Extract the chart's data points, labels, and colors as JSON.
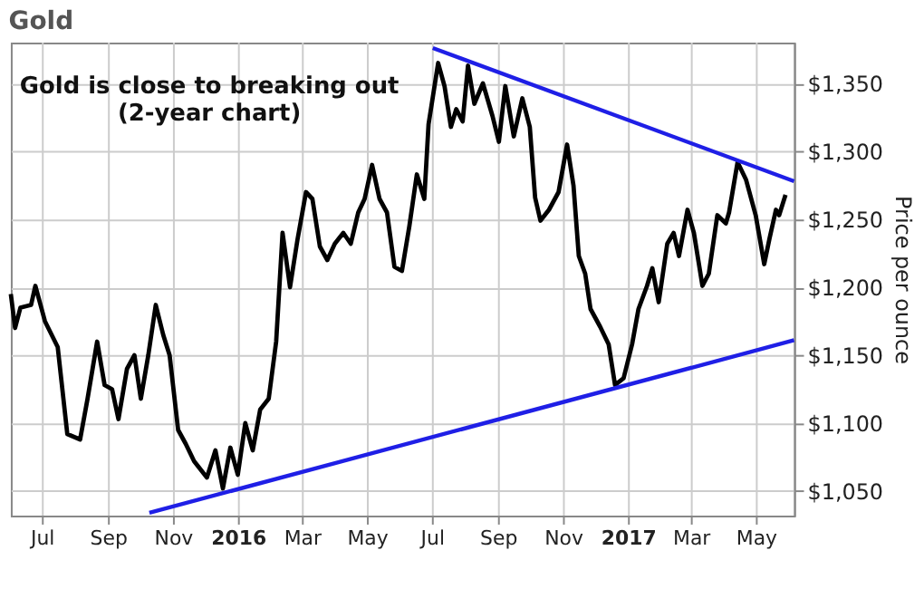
{
  "chart_data": {
    "type": "line",
    "title": "Gold",
    "ylabel": "Price per ounce",
    "annotations": [
      "Gold is close to breaking out\n(2-year chart)"
    ],
    "xlim": [
      "2015-06-01",
      "2017-06-05"
    ],
    "ylim": [
      1032,
      1380
    ],
    "xticks": [
      {
        "value": "2015-07-01",
        "label": "Jul"
      },
      {
        "value": "2015-09-01",
        "label": "Sep"
      },
      {
        "value": "2015-11-01",
        "label": "Nov"
      },
      {
        "value": "2016-01-01",
        "label": "2016"
      },
      {
        "value": "2016-03-01",
        "label": "Mar"
      },
      {
        "value": "2016-05-01",
        "label": "May"
      },
      {
        "value": "2016-07-01",
        "label": "Jul"
      },
      {
        "value": "2016-09-01",
        "label": "Sep"
      },
      {
        "value": "2016-11-01",
        "label": "Nov"
      },
      {
        "value": "2017-01-01",
        "label": "2017"
      },
      {
        "value": "2017-03-01",
        "label": "Mar"
      },
      {
        "value": "2017-05-01",
        "label": "May"
      }
    ],
    "yticks": [
      {
        "value": 1050,
        "label": "$1,050"
      },
      {
        "value": 1100,
        "label": "$1,100"
      },
      {
        "value": 1150,
        "label": "$1,150"
      },
      {
        "value": 1200,
        "label": "$1,200"
      },
      {
        "value": 1250,
        "label": "$1,250"
      },
      {
        "value": 1300,
        "label": "$1,300"
      },
      {
        "value": 1350,
        "label": "$1,350"
      }
    ],
    "grid": true,
    "line_style": "solid",
    "marker": "none",
    "series": [
      {
        "color": "#000000",
        "x": [
          "2015-06-01",
          "2015-06-05",
          "2015-06-10",
          "2015-06-20",
          "2015-06-24",
          "2015-07-03",
          "2015-07-15",
          "2015-07-24",
          "2015-08-05",
          "2015-08-12",
          "2015-08-21",
          "2015-08-28",
          "2015-09-04",
          "2015-09-10",
          "2015-09-18",
          "2015-09-25",
          "2015-10-01",
          "2015-10-08",
          "2015-10-15",
          "2015-10-22",
          "2015-10-28",
          "2015-11-05",
          "2015-11-12",
          "2015-11-20",
          "2015-12-02",
          "2015-12-10",
          "2015-12-17",
          "2015-12-24",
          "2015-12-31",
          "2016-01-07",
          "2016-01-14",
          "2016-01-21",
          "2016-01-29",
          "2016-02-05",
          "2016-02-11",
          "2016-02-18",
          "2016-02-25",
          "2016-03-04",
          "2016-03-10",
          "2016-03-17",
          "2016-03-24",
          "2016-03-31",
          "2016-04-08",
          "2016-04-15",
          "2016-04-22",
          "2016-04-28",
          "2016-05-05",
          "2016-05-12",
          "2016-05-19",
          "2016-05-26",
          "2016-06-02",
          "2016-06-09",
          "2016-06-16",
          "2016-06-23",
          "2016-06-27",
          "2016-07-01",
          "2016-07-06",
          "2016-07-12",
          "2016-07-18",
          "2016-07-23",
          "2016-07-29",
          "2016-08-03",
          "2016-08-09",
          "2016-08-17",
          "2016-08-26",
          "2016-09-01",
          "2016-09-07",
          "2016-09-15",
          "2016-09-23",
          "2016-09-30",
          "2016-10-05",
          "2016-10-10",
          "2016-10-18",
          "2016-10-27",
          "2016-11-04",
          "2016-11-10",
          "2016-11-15",
          "2016-11-21",
          "2016-11-26",
          "2016-12-05",
          "2016-12-13",
          "2016-12-19",
          "2016-12-27",
          "2017-01-04",
          "2017-01-10",
          "2017-01-18",
          "2017-01-23",
          "2017-01-29",
          "2017-02-06",
          "2017-02-12",
          "2017-02-17",
          "2017-02-25",
          "2017-03-03",
          "2017-03-11",
          "2017-03-17",
          "2017-03-25",
          "2017-04-02",
          "2017-04-05",
          "2017-04-13",
          "2017-04-21",
          "2017-04-30",
          "2017-05-08",
          "2017-05-13",
          "2017-05-19",
          "2017-05-22",
          "2017-05-28"
        ],
        "values": [
          1195,
          1170,
          1185,
          1187,
          1201,
          1175,
          1156,
          1092,
          1088,
          1118,
          1160,
          1128,
          1125,
          1103,
          1140,
          1150,
          1118,
          1150,
          1187,
          1165,
          1150,
          1095,
          1085,
          1072,
          1060,
          1080,
          1052,
          1082,
          1062,
          1100,
          1080,
          1110,
          1118,
          1160,
          1240,
          1200,
          1235,
          1270,
          1265,
          1230,
          1220,
          1232,
          1240,
          1232,
          1255,
          1265,
          1290,
          1265,
          1255,
          1215,
          1212,
          1245,
          1283,
          1265,
          1320,
          1340,
          1365,
          1348,
          1318,
          1331,
          1322,
          1363,
          1335,
          1350,
          1326,
          1307,
          1348,
          1311,
          1339,
          1318,
          1266,
          1249,
          1257,
          1270,
          1305,
          1275,
          1223,
          1210,
          1184,
          1171,
          1158,
          1128,
          1133,
          1158,
          1184,
          1201,
          1214,
          1189,
          1232,
          1240,
          1223,
          1257,
          1240,
          1201,
          1210,
          1253,
          1247,
          1255,
          1292,
          1279,
          1253,
          1217,
          1236,
          1257,
          1253,
          1268
        ]
      },
      {
        "type": "line",
        "color": "#1f1fe6",
        "x": [
          "2016-07-01",
          "2017-06-05"
        ],
        "values": [
          1376,
          1278
        ]
      },
      {
        "type": "line",
        "color": "#1f1fe6",
        "x": [
          "2015-10-09",
          "2017-06-05"
        ],
        "values": [
          1034,
          1161
        ]
      }
    ]
  }
}
